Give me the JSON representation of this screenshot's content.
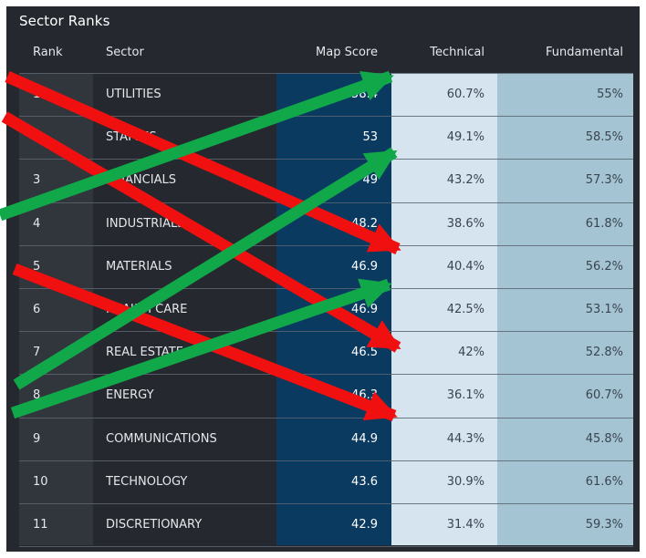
{
  "panel": {
    "title": "Sector Ranks"
  },
  "table": {
    "headers": {
      "rank": "Rank",
      "sector": "Sector",
      "map_score": "Map Score",
      "technical": "Technical",
      "fundamental": "Fundamental"
    },
    "rows": [
      {
        "rank": "1",
        "sector": "UTILITIES",
        "map_score": "58.4",
        "technical": "60.7%",
        "fundamental": "55%"
      },
      {
        "rank": "2",
        "sector": "STAPLES",
        "map_score": "53",
        "technical": "49.1%",
        "fundamental": "58.5%"
      },
      {
        "rank": "3",
        "sector": "FINANCIALS",
        "map_score": "49",
        "technical": "43.2%",
        "fundamental": "57.3%"
      },
      {
        "rank": "4",
        "sector": "INDUSTRIALS",
        "map_score": "48.2",
        "technical": "38.6%",
        "fundamental": "61.8%"
      },
      {
        "rank": "5",
        "sector": "MATERIALS",
        "map_score": "46.9",
        "technical": "40.4%",
        "fundamental": "56.2%"
      },
      {
        "rank": "6",
        "sector": "HEALTH CARE",
        "map_score": "46.9",
        "technical": "42.5%",
        "fundamental": "53.1%"
      },
      {
        "rank": "7",
        "sector": "REAL ESTATE",
        "map_score": "46.5",
        "technical": "42%",
        "fundamental": "52.8%"
      },
      {
        "rank": "8",
        "sector": "ENERGY",
        "map_score": "46.3",
        "technical": "36.1%",
        "fundamental": "60.7%"
      },
      {
        "rank": "9",
        "sector": "COMMUNICATIONS",
        "map_score": "44.9",
        "technical": "44.3%",
        "fundamental": "45.8%"
      },
      {
        "rank": "10",
        "sector": "TECHNOLOGY",
        "map_score": "43.6",
        "technical": "30.9%",
        "fundamental": "61.6%"
      },
      {
        "rank": "11",
        "sector": "DISCRETIONARY",
        "map_score": "42.9",
        "technical": "31.4%",
        "fundamental": "59.3%"
      }
    ]
  },
  "colors": {
    "panel_bg": "#25292f",
    "map_score_col": "#0b3a60",
    "technical_col": "#d6e4f0",
    "fundamental_col": "#a4c4d3",
    "arrow_up": "#11a84a",
    "arrow_down": "#f01010"
  }
}
